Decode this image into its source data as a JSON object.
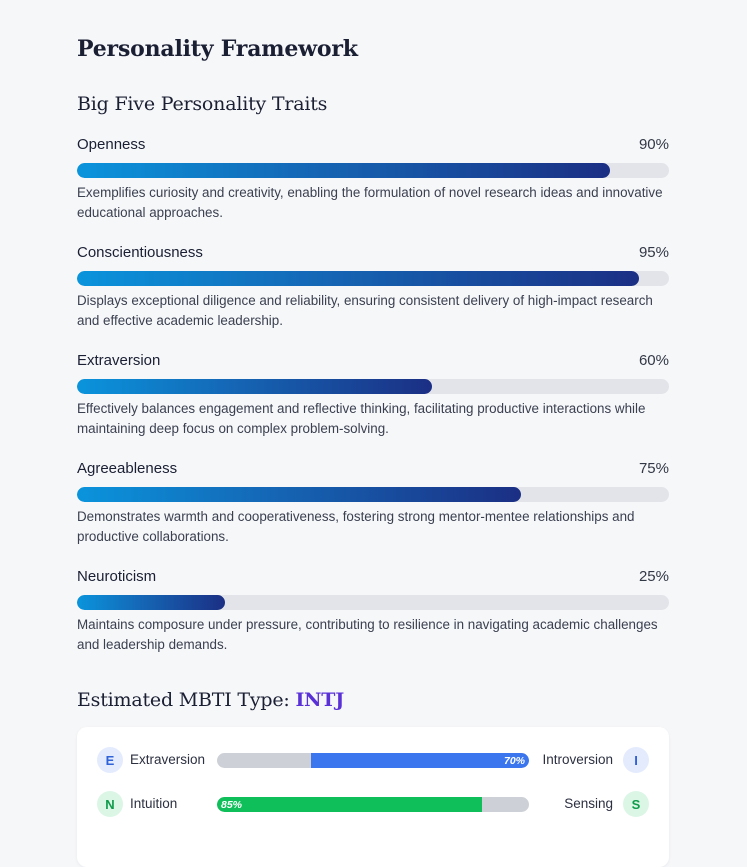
{
  "page": {
    "title": "Personality Framework"
  },
  "big_five": {
    "title": "Big Five Personality Traits",
    "traits": [
      {
        "name": "Openness",
        "value_label": "90%",
        "percent": 90,
        "description": "Exemplifies curiosity and creativity, enabling the formulation of novel research ideas and innovative educational approaches."
      },
      {
        "name": "Conscientiousness",
        "value_label": "95%",
        "percent": 95,
        "description": "Displays exceptional diligence and reliability, ensuring consistent delivery of high-impact research and effective academic leadership."
      },
      {
        "name": "Extraversion",
        "value_label": "60%",
        "percent": 60,
        "description": "Effectively balances engagement and reflective thinking, facilitating productive interactions while maintaining deep focus on complex problem-solving."
      },
      {
        "name": "Agreeableness",
        "value_label": "75%",
        "percent": 75,
        "description": "Demonstrates warmth and cooperativeness, fostering strong mentor-mentee relationships and productive collaborations."
      },
      {
        "name": "Neuroticism",
        "value_label": "25%",
        "percent": 25,
        "description": "Maintains composure under pressure, contributing to resilience in navigating academic challenges and leadership demands."
      }
    ]
  },
  "mbti": {
    "title_prefix": "Estimated MBTI Type: ",
    "type": "INTJ",
    "dimensions": [
      {
        "left_letter": "E",
        "left_label": "Extraversion",
        "right_letter": "I",
        "right_label": "Introversion",
        "value_label": "70%",
        "percent": 70,
        "side": "right",
        "fill_color": "#3b76ef",
        "left_badge_bg": "#e3ebfd",
        "left_badge_fg": "#2f62d8",
        "right_badge_bg": "#e3ebfd",
        "right_badge_fg": "#2f62d8"
      },
      {
        "left_letter": "N",
        "left_label": "Intuition",
        "right_letter": "S",
        "right_label": "Sensing",
        "value_label": "85%",
        "percent": 85,
        "side": "left",
        "fill_color": "#0fbf5a",
        "left_badge_bg": "#dcf6e6",
        "left_badge_fg": "#0e9b4a",
        "right_badge_bg": "#dcf6e6",
        "right_badge_fg": "#0e9b4a"
      }
    ]
  }
}
